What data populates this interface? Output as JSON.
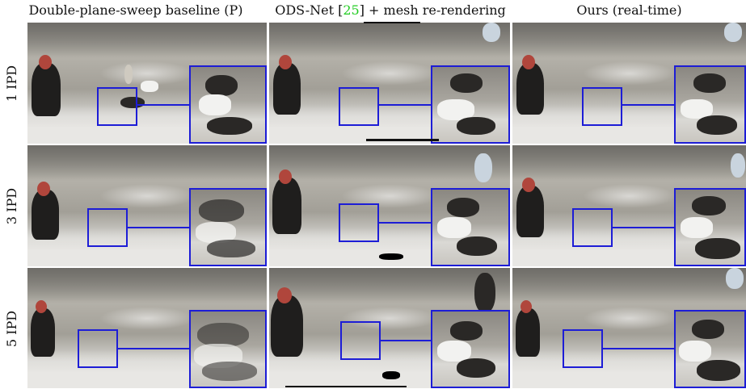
{
  "columns": [
    {
      "header": "Double-plane-sweep baseline (P)"
    },
    {
      "header_pre": "ODS-Net [",
      "header_cite": "25",
      "header_post": "] + mesh re-rendering"
    },
    {
      "header": "Ours (real-time)"
    }
  ],
  "rows": [
    {
      "label": "1 IPD"
    },
    {
      "label": "3 IPD"
    },
    {
      "label": "5 IPD"
    }
  ],
  "colors": {
    "zoom_box": "#1d1dd6",
    "citation": "#22cc22"
  }
}
